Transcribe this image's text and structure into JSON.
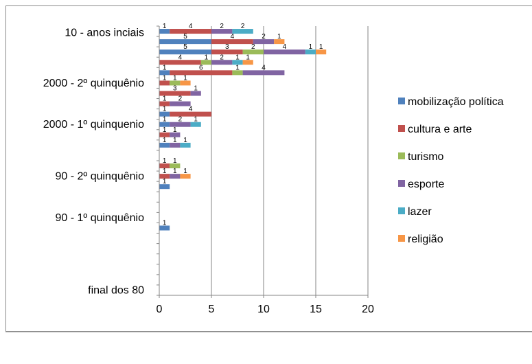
{
  "chart_data": {
    "type": "bar",
    "orientation": "horizontal",
    "stacked": true,
    "title": "",
    "xlabel": "",
    "ylabel": "",
    "xlim": [
      0,
      20
    ],
    "x_ticks": [
      0,
      5,
      10,
      15,
      20
    ],
    "grid": "vertical",
    "legend_position": "right",
    "period_labels": [
      "10 - anos inciais",
      "2000 - 2º quinquênio",
      "2000 - 1º quinquenio",
      "90 - 2º quinquênio",
      "90 - 1º quinquênio",
      "final dos 80"
    ],
    "rows": [
      {
        "period": "10 - anos inciais",
        "values": [
          1,
          4,
          0,
          2,
          2,
          0
        ]
      },
      {
        "period": "10 - anos inciais",
        "values": [
          5,
          4,
          0,
          2,
          0,
          1
        ]
      },
      {
        "period": "10 - anos inciais",
        "values": [
          5,
          3,
          2,
          4,
          1,
          1
        ]
      },
      {
        "period": "10 - anos inciais",
        "values": [
          0,
          4,
          1,
          2,
          1,
          1
        ]
      },
      {
        "period": "10 - anos inciais",
        "values": [
          1,
          6,
          1,
          4,
          0,
          0
        ]
      },
      {
        "period": "2000 - 2º quinquênio",
        "values": [
          0,
          1,
          1,
          0,
          0,
          1
        ]
      },
      {
        "period": "2000 - 2º quinquênio",
        "values": [
          0,
          3,
          0,
          1,
          0,
          0
        ]
      },
      {
        "period": "2000 - 2º quinquênio",
        "values": [
          0,
          1,
          0,
          2,
          0,
          0
        ]
      },
      {
        "period": "2000 - 2º quinquênio",
        "values": [
          1,
          4,
          0,
          0,
          0,
          0
        ]
      },
      {
        "period": "2000 - 1º quinquenio",
        "values": [
          1,
          0,
          0,
          2,
          1,
          0
        ]
      },
      {
        "period": "2000 - 1º quinquenio",
        "values": [
          0,
          1,
          0,
          1,
          0,
          0
        ]
      },
      {
        "period": "2000 - 1º quinquenio",
        "values": [
          1,
          0,
          0,
          1,
          1,
          0
        ]
      },
      {
        "period": "2000 - 1º quinquenio",
        "values": [
          0,
          0,
          0,
          0,
          0,
          0
        ]
      },
      {
        "period": "2000 - 1º quinquenio",
        "values": [
          0,
          1,
          1,
          0,
          0,
          0
        ]
      },
      {
        "period": "90 - 2º quinquênio",
        "values": [
          0,
          1,
          0,
          1,
          0,
          1
        ]
      },
      {
        "period": "90 - 2º quinquênio",
        "values": [
          1,
          0,
          0,
          0,
          0,
          0
        ]
      },
      {
        "period": "90 - 2º quinquênio",
        "values": [
          0,
          0,
          0,
          0,
          0,
          0
        ]
      },
      {
        "period": "90 - 2º quinquênio",
        "values": [
          0,
          0,
          0,
          0,
          0,
          0
        ]
      },
      {
        "period": "90 - 1º quinquênio",
        "values": [
          0,
          0,
          0,
          0,
          0,
          0
        ]
      },
      {
        "period": "90 - 1º quinquênio",
        "values": [
          1,
          0,
          0,
          0,
          0,
          0
        ]
      },
      {
        "period": "90 - 1º quinquênio",
        "values": [
          0,
          0,
          0,
          0,
          0,
          0
        ]
      },
      {
        "period": "90 - 1º quinquênio",
        "values": [
          0,
          0,
          0,
          0,
          0,
          0
        ]
      },
      {
        "period": "final dos 80",
        "values": [
          0,
          0,
          0,
          0,
          0,
          0
        ]
      },
      {
        "period": "final dos 80",
        "values": [
          0,
          0,
          0,
          0,
          0,
          0
        ]
      },
      {
        "period": "final dos 80",
        "values": [
          0,
          0,
          0,
          0,
          0,
          0
        ]
      },
      {
        "period": "final dos 80",
        "values": [
          0,
          0,
          0,
          0,
          0,
          0
        ]
      }
    ],
    "series": [
      {
        "name": "mobilização política",
        "color": "#4F81BD"
      },
      {
        "name": "cultura e arte",
        "color": "#C0504D"
      },
      {
        "name": "turismo",
        "color": "#9BBB59"
      },
      {
        "name": "esporte",
        "color": "#8064A2"
      },
      {
        "name": "lazer",
        "color": "#4BACC6"
      },
      {
        "name": "religião",
        "color": "#F79646"
      }
    ]
  }
}
